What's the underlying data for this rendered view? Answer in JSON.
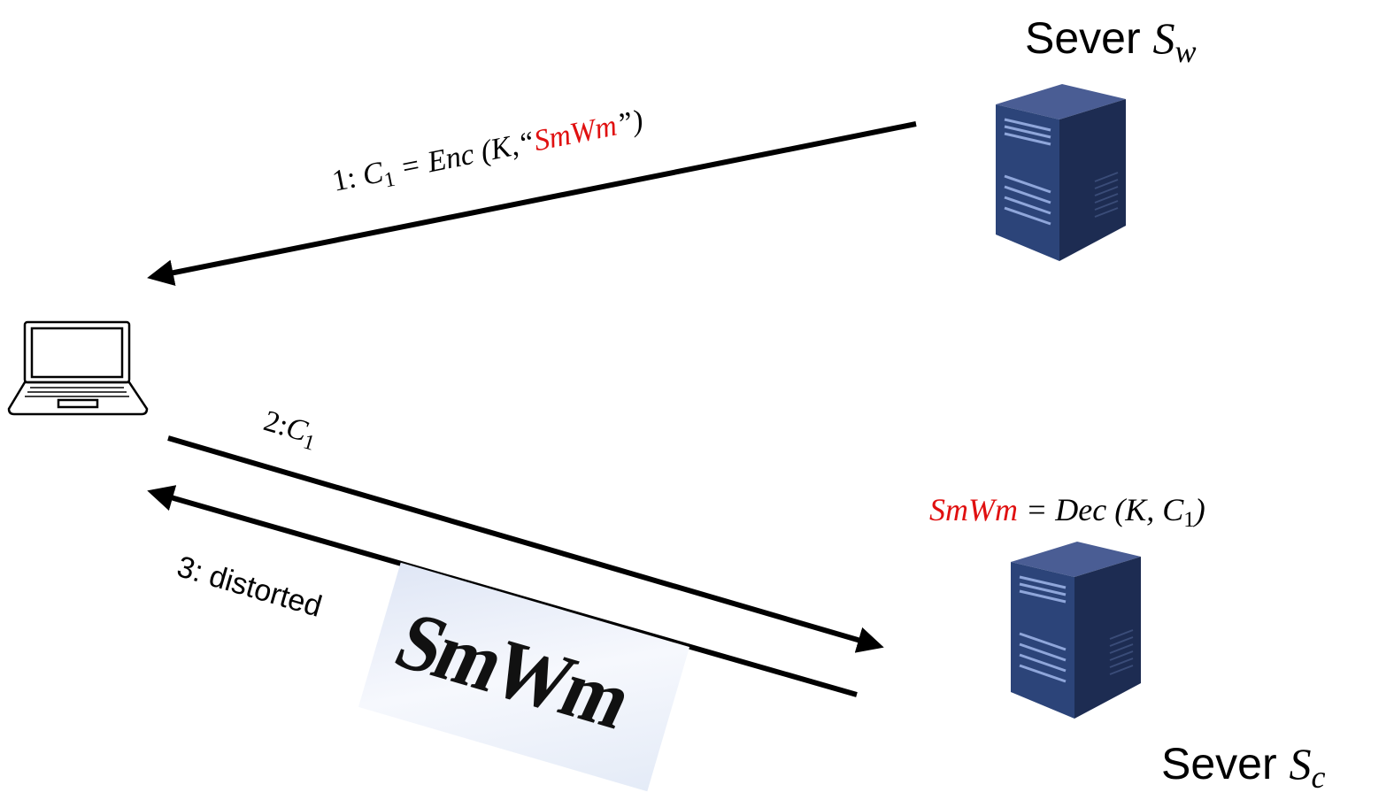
{
  "servers": [
    {
      "label": "Sever",
      "symbol": "S",
      "subscript": "w"
    },
    {
      "label": "Sever",
      "symbol": "S",
      "subscript": "c"
    }
  ],
  "messages": [
    {
      "step": "1:",
      "var": "C",
      "sub": "1",
      "expr": " = Enc (K,“",
      "secret": "SmWm",
      "close": "”)"
    },
    {
      "step": "2:",
      "var": "C",
      "sub": "1"
    },
    {
      "step": "3: distorted",
      "captcha": "SmWm"
    }
  ],
  "decryption": {
    "secret": "SmWm",
    "expr": " = Dec (K, ",
    "var": "C",
    "sub": "1",
    "close": ")"
  }
}
